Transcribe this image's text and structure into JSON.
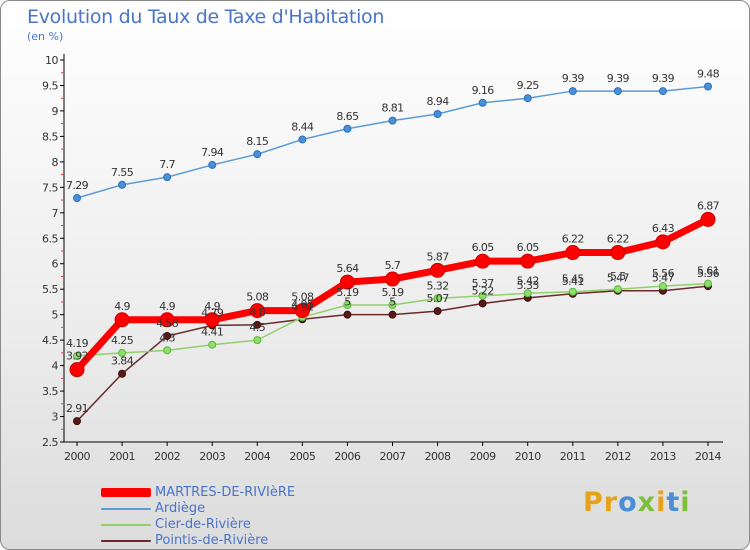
{
  "header": {
    "title": "Evolution du Taux de Taxe d'Habitation",
    "subtitle": "(en %)"
  },
  "brand": {
    "text": "Proxiti"
  },
  "colors": {
    "title": "#4a74c9",
    "axis": "#000000",
    "grid_tick": "#ff3333"
  },
  "chart_data": {
    "type": "line",
    "title": "Evolution du Taux de Taxe d'Habitation",
    "ylabel": "(en %)",
    "xlabel": "",
    "ylim": [
      2.5,
      10
    ],
    "yticks": [
      "2.5",
      "3",
      "3.5",
      "4",
      "4.5",
      "5",
      "5.5",
      "6",
      "6.5",
      "7",
      "7.5",
      "8",
      "8.5",
      "9",
      "9.5",
      "10"
    ],
    "x": [
      "2000",
      "2001",
      "2002",
      "2003",
      "2004",
      "2005",
      "2006",
      "2007",
      "2008",
      "2009",
      "2010",
      "2011",
      "2012",
      "2013",
      "2014"
    ],
    "grid": false,
    "legend_position": "bottom-left",
    "series": [
      {
        "name": "MARTRES-DE-RIVIèRE",
        "color": "#ff0000",
        "values": [
          3.92,
          4.9,
          4.9,
          4.9,
          5.08,
          5.08,
          5.64,
          5.7,
          5.87,
          6.05,
          6.05,
          6.22,
          6.22,
          6.43,
          6.87
        ],
        "labels": [
          "3.92",
          "4.9",
          "4.9",
          "4.9",
          "5.08",
          "5.08",
          "5.64",
          "5.7",
          "5.87",
          "6.05",
          "6.05",
          "6.22",
          "6.22",
          "6.43",
          "6.87"
        ]
      },
      {
        "name": "Ardiège",
        "color": "#5b9bd5",
        "values": [
          7.29,
          7.55,
          7.7,
          7.94,
          8.15,
          8.44,
          8.65,
          8.81,
          8.94,
          9.16,
          9.25,
          9.39,
          9.39,
          9.39,
          9.48
        ],
        "labels": [
          "7.29",
          "7.55",
          "7.7",
          "7.94",
          "8.15",
          "8.44",
          "8.65",
          "8.81",
          "8.94",
          "9.16",
          "9.25",
          "9.39",
          "9.39",
          "9.39",
          "9.48"
        ]
      },
      {
        "name": "Cier-de-Rivière",
        "color": "#8fd16a",
        "values": [
          4.19,
          4.25,
          4.3,
          4.41,
          4.5,
          4.95,
          5.19,
          5.19,
          5.32,
          5.37,
          5.42,
          5.45,
          5.5,
          5.56,
          5.61
        ],
        "labels": [
          "4.19",
          "4.25",
          "4.3",
          "4.41",
          "4.5",
          "4.95",
          "5.19",
          "5.19",
          "5.32",
          "5.37",
          "5.42",
          "5.45",
          "5.5",
          "5.56",
          "5.61"
        ]
      },
      {
        "name": "Pointis-de-Rivière",
        "color": "#6b2a2a",
        "values": [
          2.91,
          3.84,
          4.58,
          4.79,
          4.8,
          4.91,
          5.0,
          5.0,
          5.07,
          5.22,
          5.33,
          5.41,
          5.47,
          5.47,
          5.56
        ],
        "labels": [
          "2.91",
          "3.84",
          "4.58",
          "4.79",
          "4.8",
          "4.91",
          "5",
          "5",
          "5.07",
          "5.22",
          "5.33",
          "5.41",
          "5.47",
          "5.47",
          "5.56"
        ]
      }
    ]
  }
}
